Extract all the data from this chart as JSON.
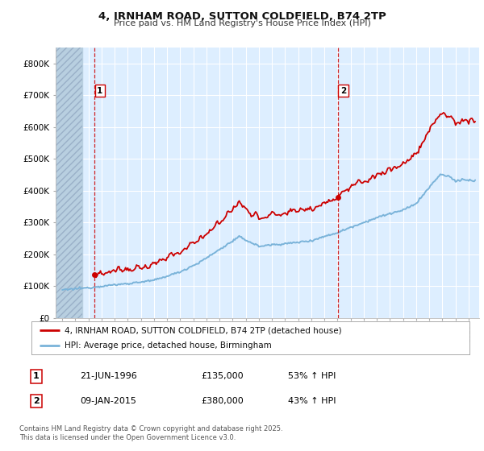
{
  "title": "4, IRNHAM ROAD, SUTTON COLDFIELD, B74 2TP",
  "subtitle": "Price paid vs. HM Land Registry's House Price Index (HPI)",
  "ylim": [
    0,
    850000
  ],
  "yticks": [
    0,
    100000,
    200000,
    300000,
    400000,
    500000,
    600000,
    700000,
    800000
  ],
  "ytick_labels": [
    "£0",
    "£100K",
    "£200K",
    "£300K",
    "£400K",
    "£500K",
    "£600K",
    "£700K",
    "£800K"
  ],
  "red_line_color": "#cc0000",
  "blue_line_color": "#7ab3d9",
  "dashed_line_color": "#cc0000",
  "marker1_x": 1996.47,
  "marker1_y": 135000,
  "marker2_x": 2015.03,
  "marker2_y": 380000,
  "legend_line1": "4, IRNHAM ROAD, SUTTON COLDFIELD, B74 2TP (detached house)",
  "legend_line2": "HPI: Average price, detached house, Birmingham",
  "table_row1": [
    "1",
    "21-JUN-1996",
    "£135,000",
    "53% ↑ HPI"
  ],
  "table_row2": [
    "2",
    "09-JAN-2015",
    "£380,000",
    "43% ↑ HPI"
  ],
  "footer": "Contains HM Land Registry data © Crown copyright and database right 2025.\nThis data is licensed under the Open Government Licence v3.0.",
  "background_color": "#ffffff",
  "plot_bg_color": "#ddeeff",
  "hatch_color": "#b8cfe0",
  "xmin": 1993.5,
  "xmax": 2025.8,
  "hatch_end": 1995.5
}
